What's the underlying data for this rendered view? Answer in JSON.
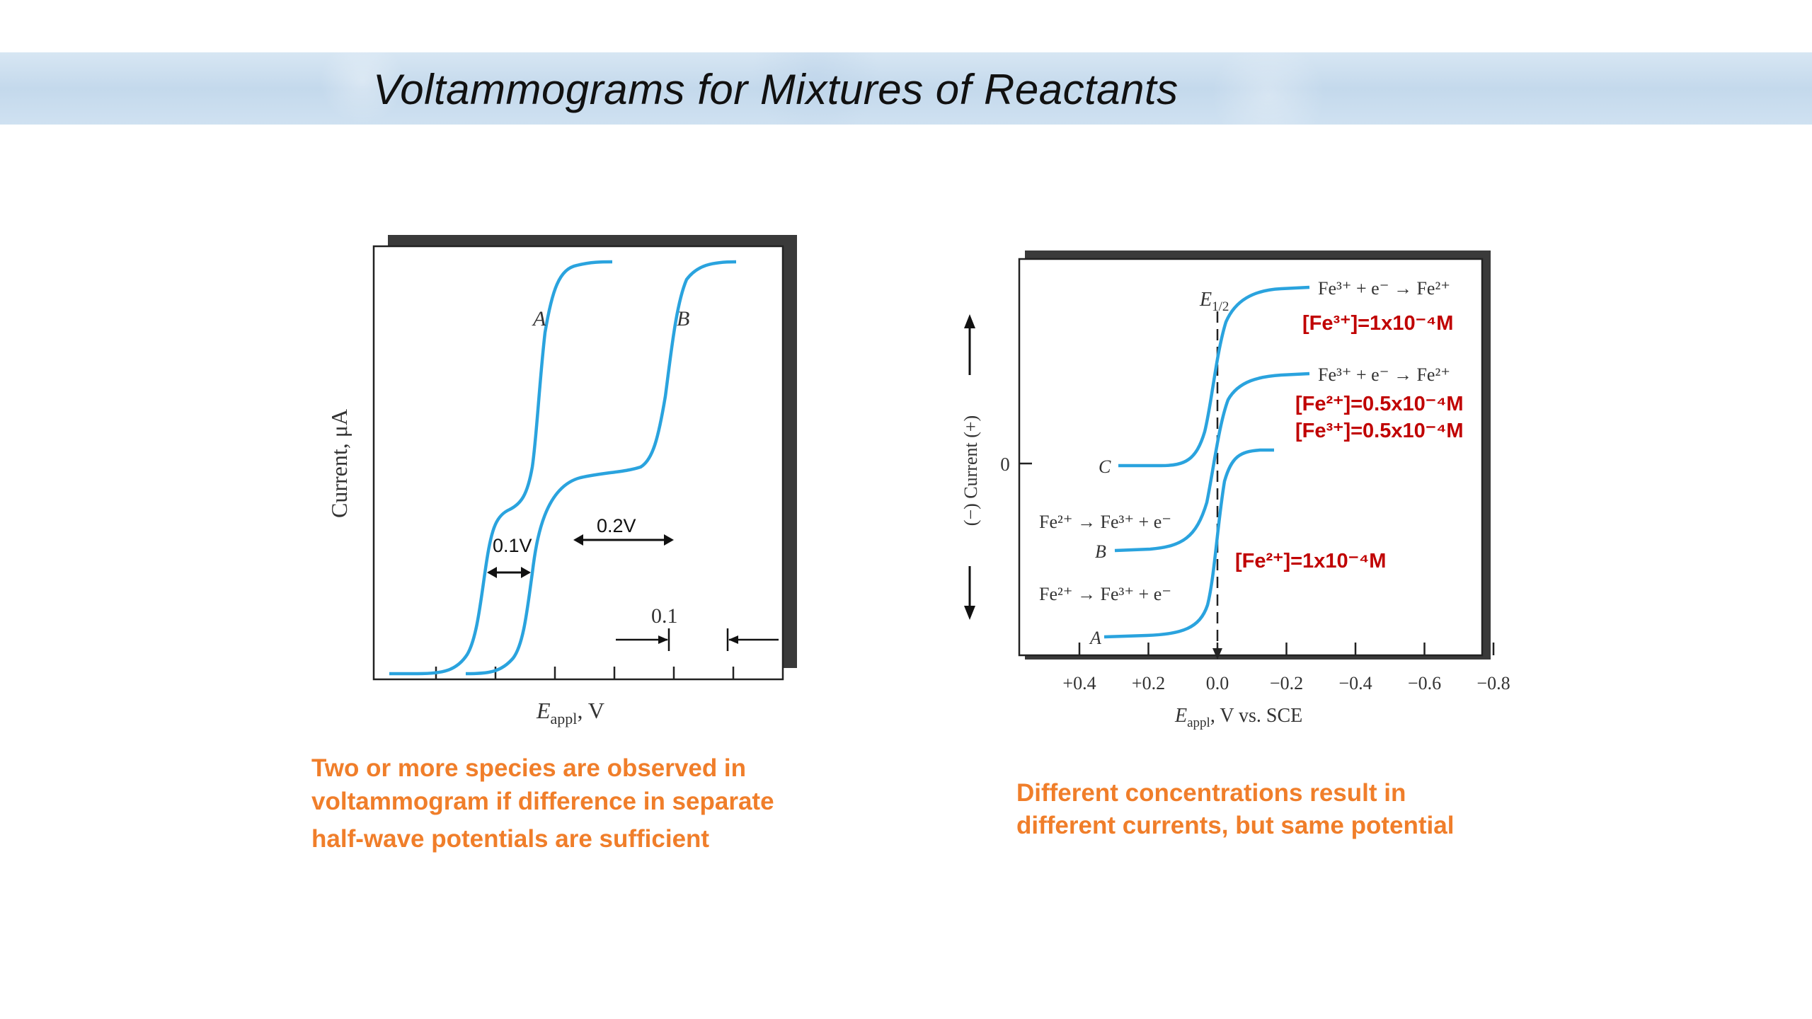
{
  "slide": {
    "title": "Voltammograms for Mixtures of Reactants",
    "caption_left": [
      "Two or more species are observed in",
      "voltammogram  if difference in separate",
      "half-wave potentials are sufficient"
    ],
    "caption_right": [
      "Different concentrations result in",
      "different currents, but same potential"
    ]
  },
  "chart_data": [
    {
      "type": "line",
      "ylabel": "Current, μA",
      "xlabel": {
        "main": "E",
        "sub": "appl",
        "rest": ", V"
      },
      "tick_count": 6,
      "series": [
        {
          "name": "A",
          "shape": "two-wave"
        },
        {
          "name": "B",
          "shape": "two-wave"
        }
      ],
      "annotations": {
        "gap_A": "0.1V",
        "gap_B": "0.2V",
        "scale": "0.1"
      },
      "line_color": "#2aa3de"
    },
    {
      "type": "line",
      "ylabel": "(−) Current (+)",
      "y_zero_label": "0",
      "xlabel": {
        "main": "E",
        "sub": "appl",
        "rest": ", V vs. SCE"
      },
      "x_ticks": [
        "+0.4",
        "+0.2",
        "0.0",
        "−0.2",
        "−0.4",
        "−0.6",
        "−0.8"
      ],
      "e_half": {
        "main": "E",
        "sub": "1/2",
        "x": 0.0
      },
      "series": [
        {
          "name": "C",
          "reaction": "Fe³⁺ + e⁻ → Fe²⁺",
          "concentration": [
            "[Fe³⁺]=1x10⁻⁴M"
          ]
        },
        {
          "name": "B",
          "reaction_top": "Fe³⁺ + e⁻ → Fe²⁺",
          "reaction_bottom": "Fe²⁺ → Fe³⁺ + e⁻",
          "concentration": [
            "[Fe²⁺]=0.5x10⁻⁴M",
            "[Fe³⁺]=0.5x10⁻⁴M"
          ]
        },
        {
          "name": "A",
          "reaction": "Fe²⁺ → Fe³⁺ + e⁻",
          "concentration": [
            "[Fe²⁺]=1x10⁻⁴M"
          ]
        }
      ],
      "line_color": "#2aa3de"
    }
  ]
}
